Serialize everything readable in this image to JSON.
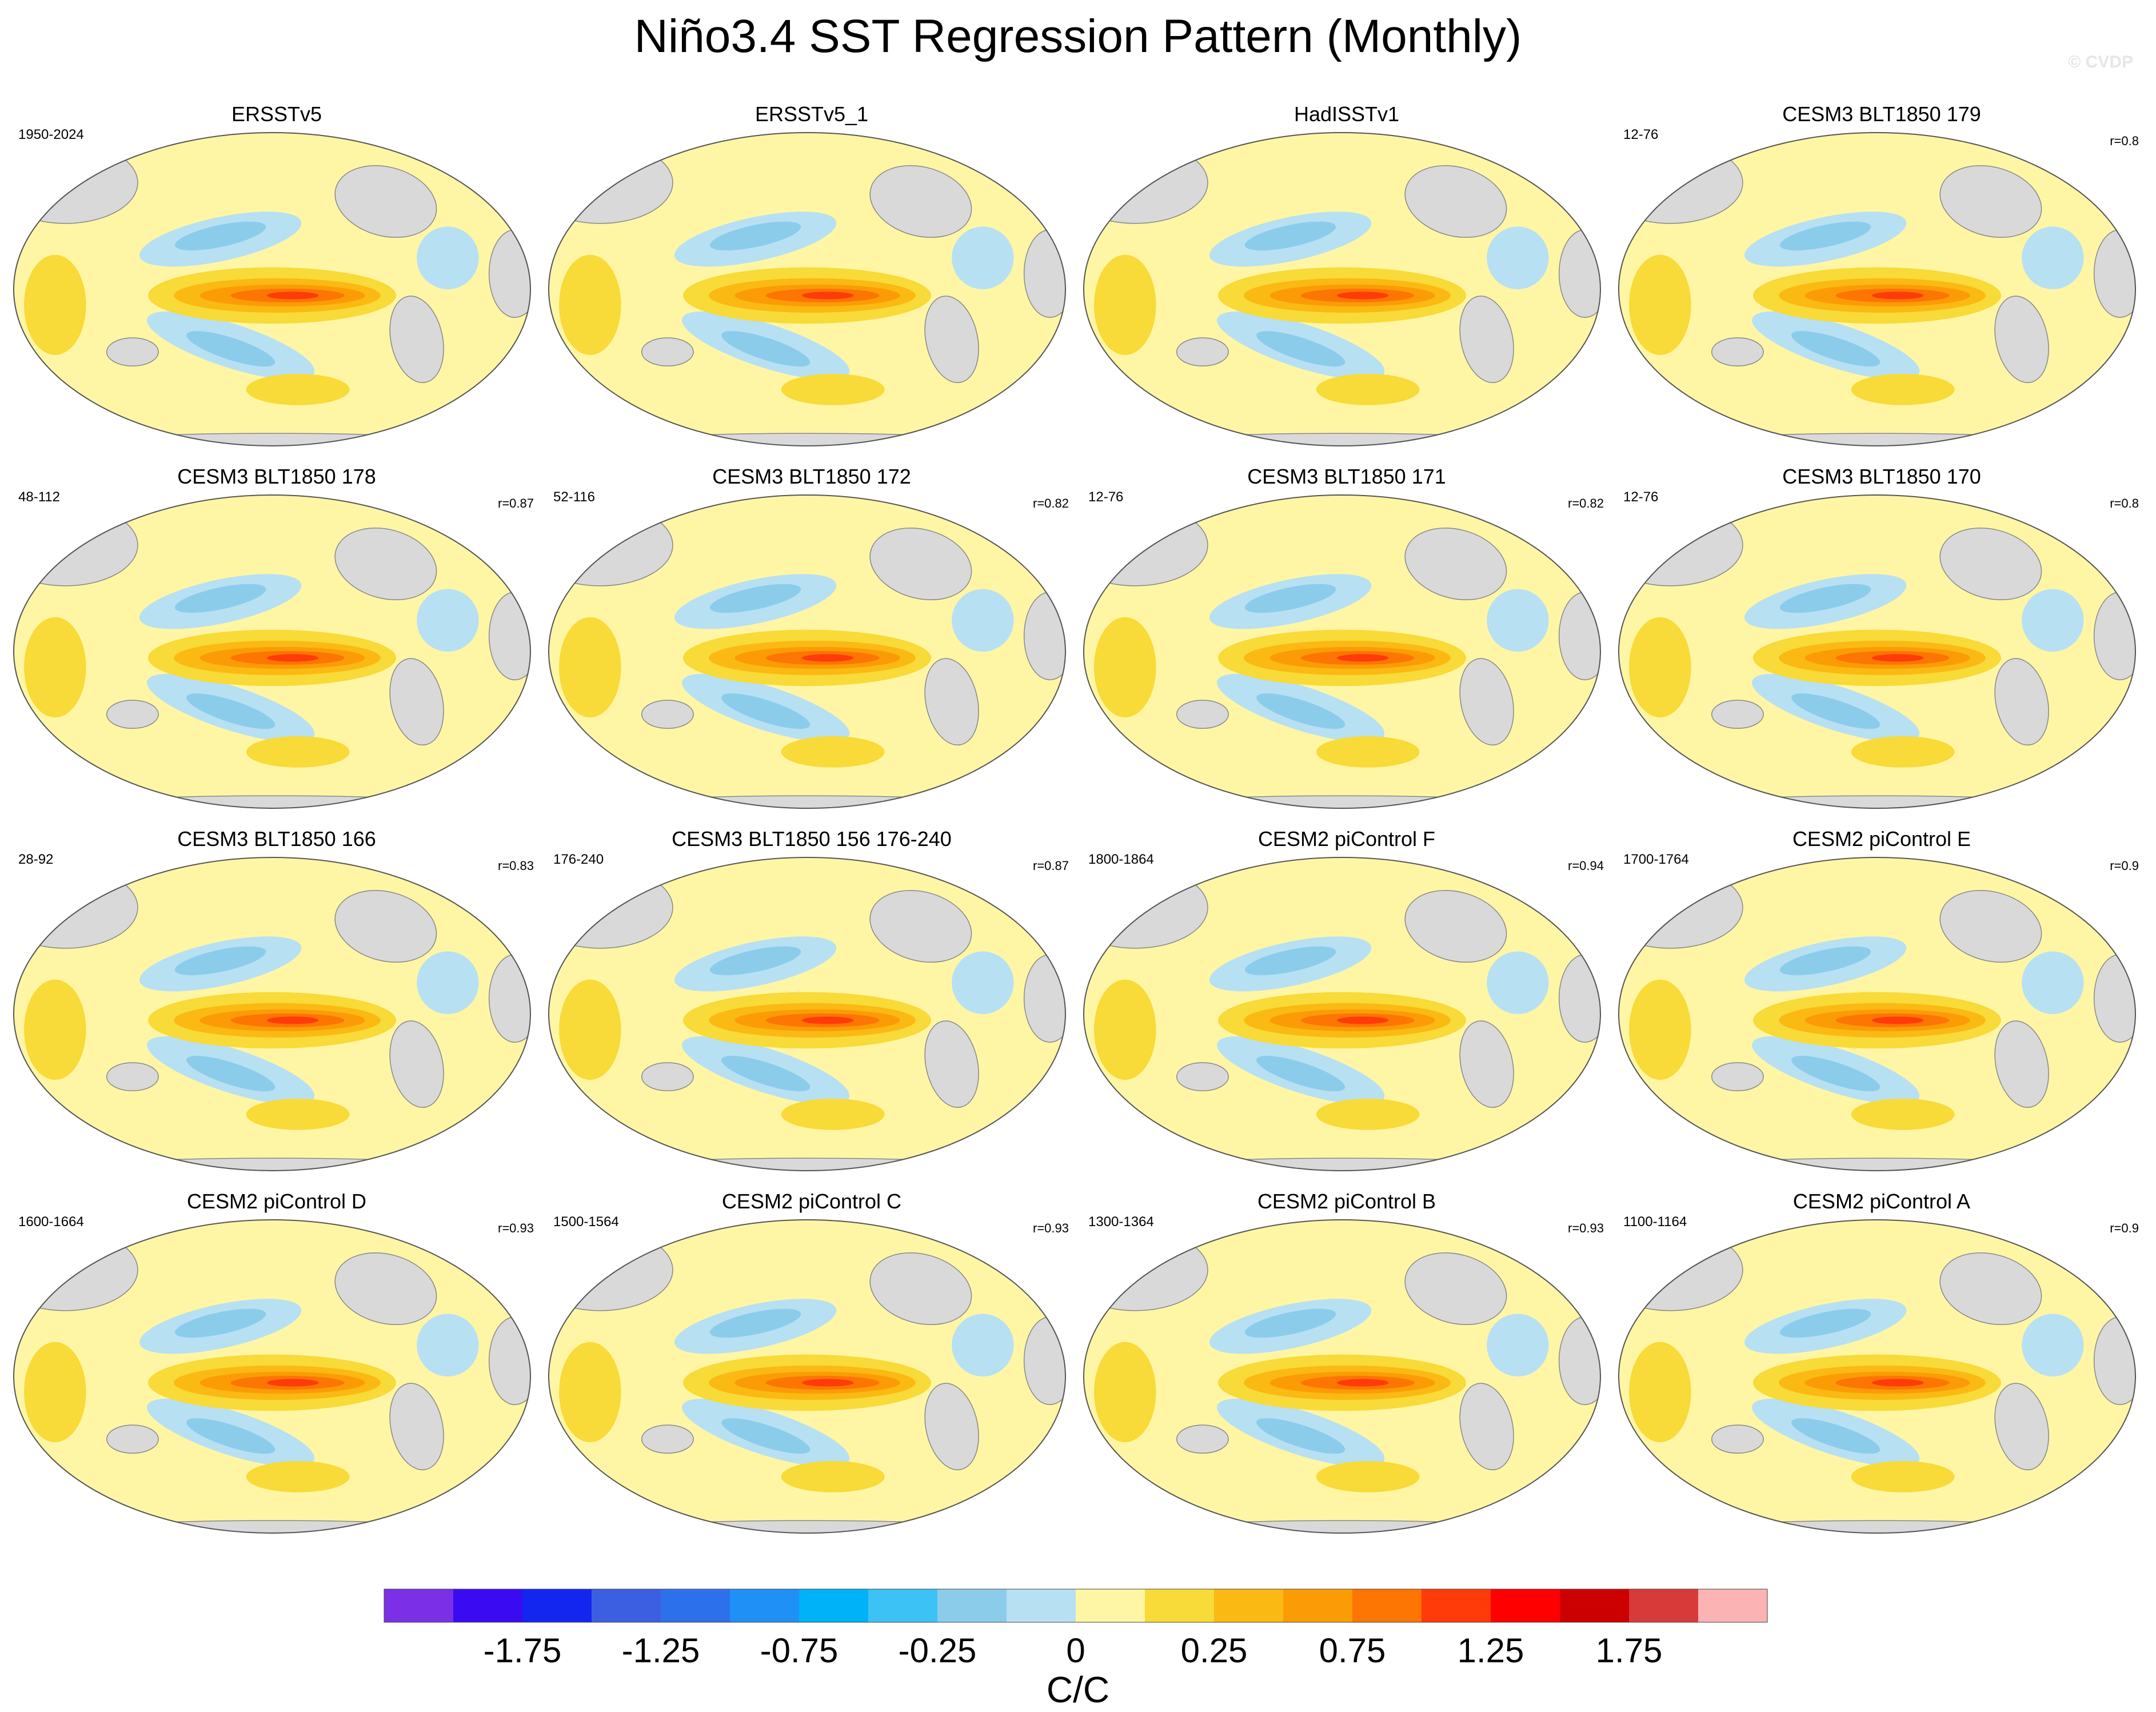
{
  "title": "Niño3.4 SST Regression Pattern (Monthly)",
  "watermark": "© CVDP",
  "chart_data": {
    "type": "heatmap",
    "projection": "Robinson-like global maps, Pacific-centered",
    "variable": "SST regression onto Niño3.4 index",
    "units": "C/C",
    "colorbar": {
      "levels": [
        -2.0,
        -1.75,
        -1.5,
        -1.25,
        -1.0,
        -0.75,
        -0.5,
        -0.25,
        -0.1,
        0,
        0.1,
        0.25,
        0.5,
        0.75,
        1.0,
        1.25,
        1.5,
        1.75,
        2.0
      ],
      "tick_labels": [
        "-1.75",
        "-1.25",
        "-0.75",
        "-0.25",
        "0",
        "0.25",
        "0.75",
        "1.25",
        "1.75"
      ],
      "tick_levels": [
        -1.75,
        -1.25,
        -0.75,
        -0.25,
        0,
        0.25,
        0.75,
        1.25,
        1.75
      ],
      "colors": [
        "#7b2fe6",
        "#3a0bf2",
        "#1226f0",
        "#3c5fe1",
        "#2d70ec",
        "#1f90f5",
        "#00b2f7",
        "#3dc2f5",
        "#8ccceb",
        "#b8e0f3",
        "#fff6a5",
        "#f8da38",
        "#fbb914",
        "#fb9c06",
        "#fd7503",
        "#ff3b0a",
        "#ff0000",
        "#cc0000",
        "#d83a3a",
        "#fbb3b3"
      ],
      "label": "C/C"
    },
    "panels": [
      {
        "title": "ERSSTv5",
        "years": "1950-2024",
        "r": ""
      },
      {
        "title": "ERSSTv5_1",
        "years": "",
        "r": ""
      },
      {
        "title": "HadISSTv1",
        "years": "",
        "r": ""
      },
      {
        "title": "CESM3 BLT1850 179",
        "years": "12-76",
        "r": "r=0.8"
      },
      {
        "title": "CESM3 BLT1850 178",
        "years": "48-112",
        "r": "r=0.87"
      },
      {
        "title": "CESM3 BLT1850 172",
        "years": "52-116",
        "r": "r=0.82"
      },
      {
        "title": "CESM3 BLT1850 171",
        "years": "12-76",
        "r": "r=0.82"
      },
      {
        "title": "CESM3 BLT1850 170",
        "years": "12-76",
        "r": "r=0.8"
      },
      {
        "title": "CESM3 BLT1850 166",
        "years": "28-92",
        "r": "r=0.83"
      },
      {
        "title": "CESM3 BLT1850 156 176-240",
        "years": "176-240",
        "r": "r=0.87"
      },
      {
        "title": "CESM2 piControl F",
        "years": "1800-1864",
        "r": "r=0.94"
      },
      {
        "title": "CESM2 piControl E",
        "years": "1700-1764",
        "r": "r=0.9"
      },
      {
        "title": "CESM2 piControl D",
        "years": "1600-1664",
        "r": "r=0.93"
      },
      {
        "title": "CESM2 piControl C",
        "years": "1500-1564",
        "r": "r=0.93"
      },
      {
        "title": "CESM2 piControl B",
        "years": "1300-1364",
        "r": "r=0.93"
      },
      {
        "title": "CESM2 piControl A",
        "years": "1100-1164",
        "r": "r=0.9"
      }
    ]
  }
}
